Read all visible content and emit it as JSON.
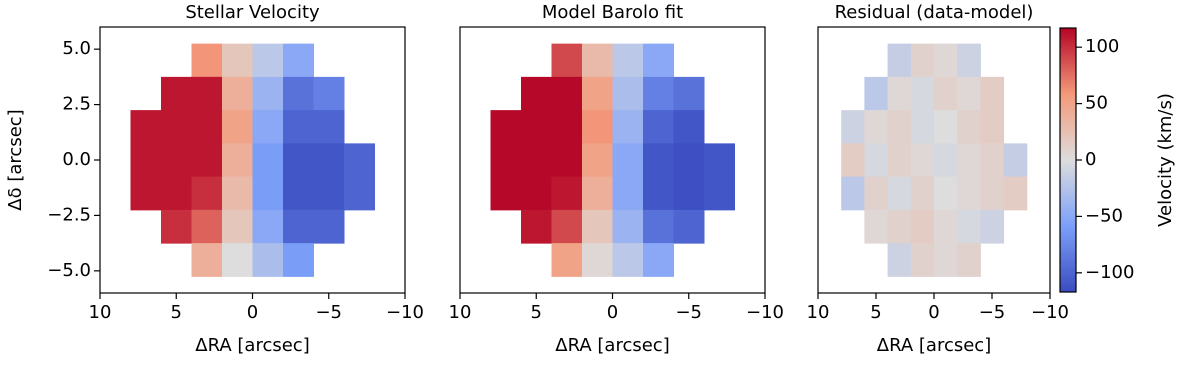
{
  "chart_data": [
    {
      "type": "heatmap",
      "title": "Stellar Velocity",
      "xlabel": "ΔRA [arcsec]",
      "ylabel": "Δδ [arcsec]",
      "cmap": "coolwarm",
      "x": [
        7,
        5,
        3,
        1,
        -1,
        -3,
        -5,
        -7
      ],
      "y": [
        4.5,
        3,
        1.5,
        0,
        -1.5,
        -3,
        -4.5
      ],
      "z": [
        [
          null,
          null,
          60,
          20,
          -20,
          -50,
          null,
          null
        ],
        [
          null,
          110,
          110,
          40,
          -40,
          -90,
          -80,
          null
        ],
        [
          110,
          110,
          110,
          50,
          -50,
          -100,
          -100,
          null
        ],
        [
          110,
          110,
          110,
          40,
          -60,
          -110,
          -110,
          -100
        ],
        [
          110,
          110,
          100,
          30,
          -60,
          -110,
          -110,
          -100
        ],
        [
          null,
          100,
          80,
          20,
          -50,
          -100,
          -100,
          null
        ],
        [
          null,
          null,
          40,
          0,
          -30,
          -60,
          null,
          null
        ]
      ],
      "xlim": [
        10,
        -10
      ],
      "ylim": [
        -6,
        6
      ],
      "xticks": [
        10,
        5,
        0,
        {
          "value": -5,
          "label": "−5"
        },
        {
          "value": -10,
          "label": "−10"
        }
      ],
      "yticks": [
        {
          "value": 5,
          "label": "5.0"
        },
        {
          "value": 2.5,
          "label": "2.5"
        },
        {
          "value": 0,
          "label": "0.0"
        },
        {
          "value": -2.5,
          "label": "−2.5"
        },
        {
          "value": -5,
          "label": "−5.0"
        }
      ]
    },
    {
      "type": "heatmap",
      "title": "Model Barolo fit",
      "xlabel": "ΔRA [arcsec]",
      "cmap": "coolwarm",
      "x": [
        7,
        5,
        3,
        1,
        -1,
        -3,
        -5,
        -7
      ],
      "y": [
        4.5,
        3,
        1.5,
        0,
        -1.5,
        -3,
        -4.5
      ],
      "z": [
        [
          null,
          null,
          90,
          30,
          -20,
          -50,
          null,
          null
        ],
        [
          null,
          115,
          115,
          50,
          -30,
          -80,
          -90,
          null
        ],
        [
          115,
          115,
          115,
          60,
          -40,
          -100,
          -110,
          null
        ],
        [
          115,
          115,
          115,
          50,
          -50,
          -110,
          -115,
          -110
        ],
        [
          115,
          115,
          110,
          40,
          -50,
          -110,
          -115,
          -110
        ],
        [
          null,
          110,
          90,
          20,
          -40,
          -90,
          -100,
          null
        ],
        [
          null,
          null,
          50,
          5,
          -20,
          -50,
          null,
          null
        ]
      ],
      "xlim": [
        10,
        -10
      ],
      "ylim": [
        -6,
        6
      ],
      "xticks": [
        10,
        5,
        0,
        {
          "value": -5,
          "label": "−5"
        },
        {
          "value": -10,
          "label": "−10"
        }
      ]
    },
    {
      "type": "heatmap",
      "title": "Residual (data-model)",
      "xlabel": "ΔRA [arcsec]",
      "cmap": "coolwarm",
      "x": [
        7,
        5,
        3,
        1,
        -1,
        -3,
        -5,
        -7
      ],
      "y": [
        4.5,
        3,
        1.5,
        0,
        -1.5,
        -3,
        -4.5
      ],
      "z": [
        [
          null,
          null,
          -15,
          10,
          5,
          -10,
          null,
          null
        ],
        [
          null,
          -20,
          5,
          -5,
          10,
          5,
          15,
          null
        ],
        [
          -10,
          5,
          10,
          -5,
          0,
          10,
          15,
          null
        ],
        [
          15,
          -5,
          10,
          5,
          -5,
          5,
          10,
          -15
        ],
        [
          -20,
          10,
          -5,
          10,
          0,
          5,
          10,
          15
        ],
        [
          null,
          5,
          10,
          15,
          5,
          -5,
          -10,
          null
        ],
        [
          null,
          null,
          -10,
          10,
          5,
          10,
          null,
          null
        ]
      ],
      "xlim": [
        10,
        -10
      ],
      "ylim": [
        -6,
        6
      ],
      "xticks": [
        10,
        5,
        0,
        {
          "value": -5,
          "label": "−5"
        },
        {
          "value": -10,
          "label": "−10"
        }
      ],
      "colorbar": {
        "label": "Velocity (km/s)",
        "lim": [
          -117,
          117
        ],
        "ticks": [
          100,
          50,
          0,
          {
            "value": -50,
            "label": "−50"
          },
          {
            "value": -100,
            "label": "−100"
          }
        ]
      }
    }
  ]
}
